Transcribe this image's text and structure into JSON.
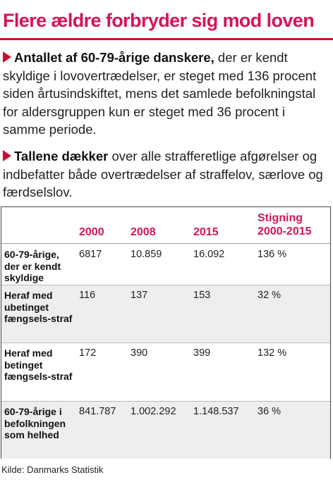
{
  "title": "Flere ældre forbryder sig mod loven",
  "paragraphs": [
    {
      "lead": "Antallet af 60-79-årige danskere,",
      "text": " der er kendt skyldige i lovovertrædelser, er steget med 136 procent siden årtusindskiftet, mens det samlede befolkningstal for aldersgruppen kun er steget med 36 procent i samme periode."
    },
    {
      "lead": "Tallene dækker",
      "text": " over alle strafferetlige afgørelser og indbefatter både overtrædelser af straffelov, særlove og færdselslov."
    }
  ],
  "table": {
    "columns": [
      "2000",
      "2008",
      "2015",
      "Stigning 2000-2015"
    ],
    "rows": [
      {
        "label": "60-79-årige, der er kendt skyldige",
        "values": [
          "6817",
          "10.859",
          "16.092",
          "136 %"
        ]
      },
      {
        "label": "Heraf med ubetinget fængsels-straf",
        "values": [
          "116",
          "137",
          "153",
          "32 %"
        ]
      },
      {
        "label": "Heraf med betinget fængsels-straf",
        "values": [
          "172",
          "390",
          "399",
          "132 %"
        ]
      },
      {
        "label": "60-79-årige i befolkningen som helhed",
        "values": [
          "841.787",
          "1.002.292",
          "1.148.537",
          "36 %"
        ]
      }
    ]
  },
  "source": "Kilde: Danmarks Statistik",
  "colors": {
    "accent": "#d4145a",
    "rule": "#c8102e",
    "row_shade": "#eeeeee"
  }
}
